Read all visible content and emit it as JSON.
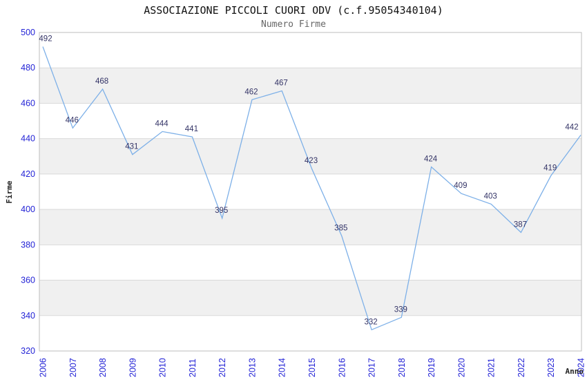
{
  "chart_data": {
    "type": "line",
    "title": "ASSOCIAZIONE PICCOLI CUORI ODV (c.f.95054340104)",
    "subtitle": "Numero Firme",
    "xlabel": "Anno",
    "ylabel": "Firme",
    "categories": [
      "2006",
      "2007",
      "2008",
      "2009",
      "2010",
      "2011",
      "2012",
      "2013",
      "2014",
      "2015",
      "2016",
      "2017",
      "2018",
      "2019",
      "2020",
      "2021",
      "2022",
      "2023",
      "2024"
    ],
    "series": [
      {
        "name": "Numero Firme",
        "values": [
          492,
          446,
          468,
          431,
          444,
          441,
          395,
          462,
          467,
          423,
          385,
          332,
          339,
          424,
          409,
          403,
          387,
          419,
          442
        ]
      }
    ],
    "ylim": [
      320,
      500
    ],
    "ytick_step": 20,
    "yticks": [
      320,
      340,
      360,
      380,
      400,
      420,
      440,
      460,
      480,
      500
    ],
    "grid": "horizontal-only",
    "legend_position": "none",
    "data_labels_shown": true,
    "x_tick_rotation_deg": -90,
    "colors": {
      "line": "#7db0e8",
      "data_label": "#333366",
      "axis_tick_label": "#2323d6",
      "band_fill": "#f0f0f0",
      "gridline": "#d9d9d9",
      "frame": "#bdbdbd",
      "title": "#111111",
      "subtitle": "#666666",
      "axis_name_label": "#222222",
      "background": "#ffffff"
    }
  }
}
